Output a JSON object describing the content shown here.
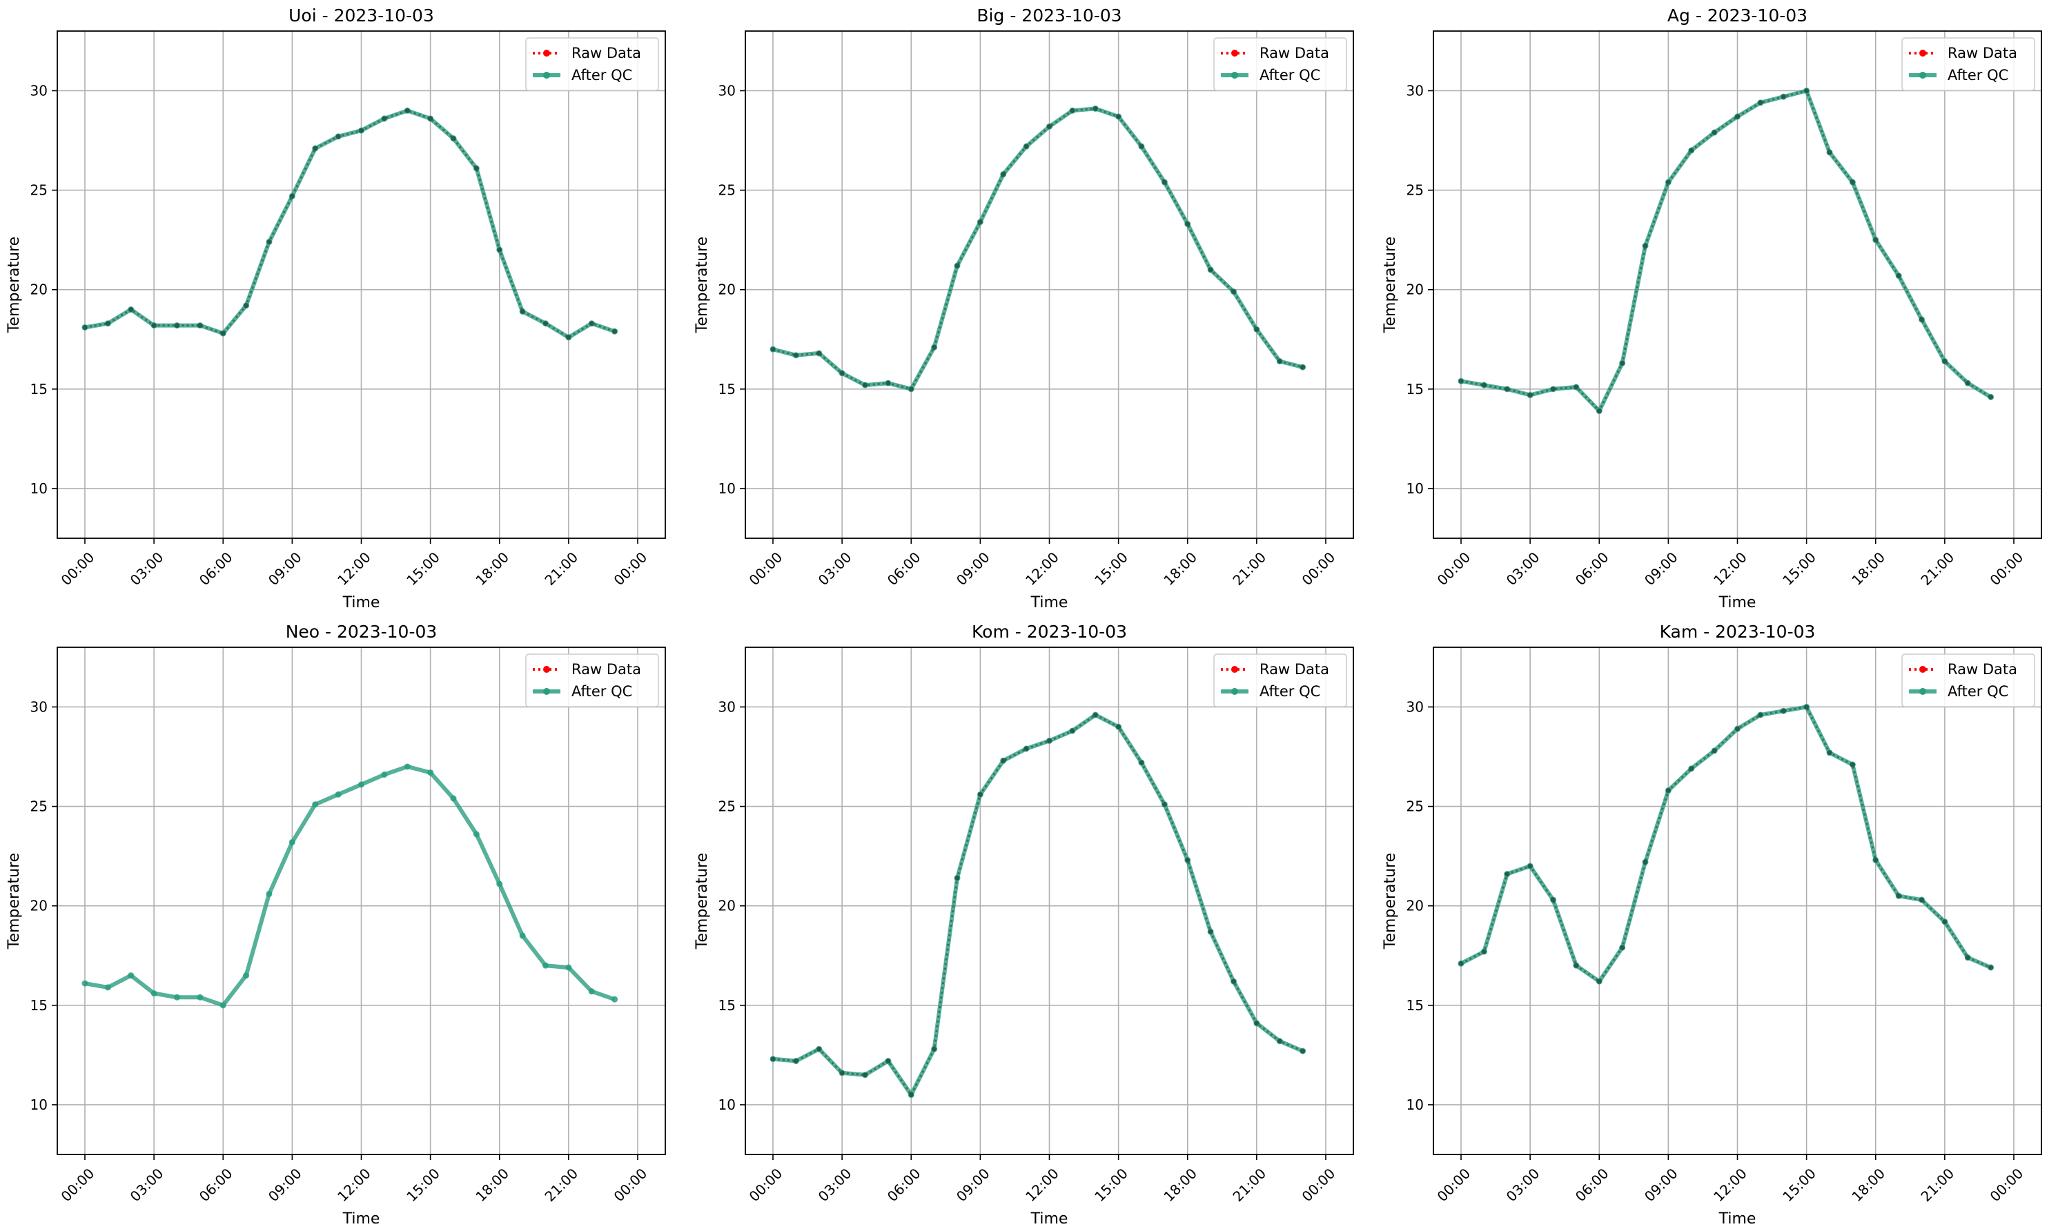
{
  "chart_data": [
    {
      "type": "line",
      "title": "Uoi - 2023-10-03",
      "xlabel": "Time",
      "ylabel": "Temperature",
      "x": [
        "00:00",
        "01:00",
        "02:00",
        "03:00",
        "04:00",
        "05:00",
        "06:00",
        "07:00",
        "08:00",
        "09:00",
        "10:00",
        "11:00",
        "12:00",
        "13:00",
        "14:00",
        "15:00",
        "16:00",
        "17:00",
        "18:00",
        "19:00",
        "20:00",
        "21:00",
        "22:00",
        "23:00"
      ],
      "xticks": [
        "00:00",
        "03:00",
        "06:00",
        "09:00",
        "12:00",
        "15:00",
        "18:00",
        "21:00",
        "00:00"
      ],
      "yticks": [
        10,
        15,
        20,
        25,
        30
      ],
      "ylim": [
        7.5,
        33
      ],
      "grid": true,
      "legend_position": "upper right",
      "series": [
        {
          "name": "Raw Data",
          "color": "#ff0000",
          "style": "dotted",
          "values": [
            18.1,
            18.3,
            19.0,
            18.2,
            18.2,
            18.2,
            17.8,
            19.2,
            22.4,
            24.7,
            27.1,
            27.7,
            28.0,
            28.6,
            29.0,
            28.6,
            27.6,
            26.1,
            22.0,
            18.9,
            18.3,
            17.6,
            18.3,
            17.9
          ]
        },
        {
          "name": "After QC",
          "color": "#2a9d80",
          "style": "solid",
          "values": [
            18.1,
            18.3,
            19.0,
            18.2,
            18.2,
            18.2,
            17.8,
            19.2,
            22.4,
            24.7,
            27.1,
            27.7,
            28.0,
            28.6,
            29.0,
            28.6,
            27.6,
            26.1,
            22.0,
            18.9,
            18.3,
            17.6,
            18.3,
            17.9
          ]
        }
      ]
    },
    {
      "type": "line",
      "title": "Big - 2023-10-03",
      "xlabel": "Time",
      "ylabel": "Temperature",
      "x": [
        "00:00",
        "01:00",
        "02:00",
        "03:00",
        "04:00",
        "05:00",
        "06:00",
        "07:00",
        "08:00",
        "09:00",
        "10:00",
        "11:00",
        "12:00",
        "13:00",
        "14:00",
        "15:00",
        "16:00",
        "17:00",
        "18:00",
        "19:00",
        "20:00",
        "21:00",
        "22:00",
        "23:00"
      ],
      "xticks": [
        "00:00",
        "03:00",
        "06:00",
        "09:00",
        "12:00",
        "15:00",
        "18:00",
        "21:00",
        "00:00"
      ],
      "yticks": [
        10,
        15,
        20,
        25,
        30
      ],
      "ylim": [
        7.5,
        33
      ],
      "grid": true,
      "legend_position": "upper right",
      "series": [
        {
          "name": "Raw Data",
          "color": "#ff0000",
          "style": "dotted",
          "values": [
            17.0,
            16.7,
            16.8,
            15.8,
            15.2,
            15.3,
            15.0,
            17.1,
            21.2,
            23.4,
            25.8,
            27.2,
            28.2,
            29.0,
            29.1,
            28.7,
            27.2,
            25.4,
            23.3,
            21.0,
            19.9,
            18.0,
            16.4,
            16.1
          ]
        },
        {
          "name": "After QC",
          "color": "#2a9d80",
          "style": "solid",
          "values": [
            17.0,
            16.7,
            16.8,
            15.8,
            15.2,
            15.3,
            15.0,
            17.1,
            21.2,
            23.4,
            25.8,
            27.2,
            28.2,
            29.0,
            29.1,
            28.7,
            27.2,
            25.4,
            23.3,
            21.0,
            19.9,
            18.0,
            16.4,
            16.1
          ]
        }
      ]
    },
    {
      "type": "line",
      "title": "Ag - 2023-10-03",
      "xlabel": "Time",
      "ylabel": "Temperature",
      "x": [
        "00:00",
        "01:00",
        "02:00",
        "03:00",
        "04:00",
        "05:00",
        "06:00",
        "07:00",
        "08:00",
        "09:00",
        "10:00",
        "11:00",
        "12:00",
        "13:00",
        "14:00",
        "15:00",
        "16:00",
        "17:00",
        "18:00",
        "19:00",
        "20:00",
        "21:00",
        "22:00",
        "23:00"
      ],
      "xticks": [
        "00:00",
        "03:00",
        "06:00",
        "09:00",
        "12:00",
        "15:00",
        "18:00",
        "21:00",
        "00:00"
      ],
      "yticks": [
        10,
        15,
        20,
        25,
        30
      ],
      "ylim": [
        7.5,
        33
      ],
      "grid": true,
      "legend_position": "upper right",
      "series": [
        {
          "name": "Raw Data",
          "color": "#ff0000",
          "style": "dotted",
          "values": [
            15.4,
            15.2,
            15.0,
            14.7,
            15.0,
            15.1,
            13.9,
            16.3,
            22.2,
            25.4,
            27.0,
            27.9,
            28.7,
            29.4,
            29.7,
            30.0,
            26.9,
            25.4,
            22.5,
            20.7,
            18.5,
            16.4,
            15.3,
            14.6
          ]
        },
        {
          "name": "After QC",
          "color": "#2a9d80",
          "style": "solid",
          "values": [
            15.4,
            15.2,
            15.0,
            14.7,
            15.0,
            15.1,
            13.9,
            16.3,
            22.2,
            25.4,
            27.0,
            27.9,
            28.7,
            29.4,
            29.7,
            30.0,
            26.9,
            25.4,
            22.5,
            20.7,
            18.5,
            16.4,
            15.3,
            14.6
          ]
        }
      ]
    },
    {
      "type": "line",
      "title": "Neo - 2023-10-03",
      "xlabel": "Time",
      "ylabel": "Temperature",
      "x": [
        "00:00",
        "01:00",
        "02:00",
        "03:00",
        "04:00",
        "05:00",
        "06:00",
        "07:00",
        "08:00",
        "09:00",
        "10:00",
        "11:00",
        "12:00",
        "13:00",
        "14:00",
        "15:00",
        "16:00",
        "17:00",
        "18:00",
        "19:00",
        "20:00",
        "21:00",
        "22:00",
        "23:00"
      ],
      "xticks": [
        "00:00",
        "03:00",
        "06:00",
        "09:00",
        "12:00",
        "15:00",
        "18:00",
        "21:00",
        "00:00"
      ],
      "yticks": [
        10,
        15,
        20,
        25,
        30
      ],
      "ylim": [
        7.5,
        33
      ],
      "grid": true,
      "legend_position": "upper right",
      "series": [
        {
          "name": "Raw Data",
          "color": "#ff0000",
          "style": "dotted",
          "values": [
            16.1,
            15.9,
            16.5,
            15.6,
            15.4,
            15.4,
            15.0,
            16.5,
            20.6,
            23.2,
            25.1,
            25.6,
            26.1,
            26.6,
            27.0,
            26.7,
            25.4,
            23.6,
            21.1,
            18.5,
            17.0,
            16.9,
            15.7,
            15.3
          ]
        },
        {
          "name": "After QC",
          "color": "#2a9d80",
          "style": "solid",
          "values": [
            16.1,
            15.9,
            16.5,
            15.6,
            15.4,
            15.4,
            15.0,
            16.5,
            20.6,
            23.2,
            25.1,
            25.6,
            26.1,
            26.6,
            27.0,
            26.7,
            25.4,
            23.6,
            21.1,
            18.5,
            17.0,
            16.9,
            15.7,
            15.3
          ]
        }
      ]
    },
    {
      "type": "line",
      "title": "Kom - 2023-10-03",
      "xlabel": "Time",
      "ylabel": "Temperature",
      "x": [
        "00:00",
        "01:00",
        "02:00",
        "03:00",
        "04:00",
        "05:00",
        "06:00",
        "07:00",
        "08:00",
        "09:00",
        "10:00",
        "11:00",
        "12:00",
        "13:00",
        "14:00",
        "15:00",
        "16:00",
        "17:00",
        "18:00",
        "19:00",
        "20:00",
        "21:00",
        "22:00",
        "23:00"
      ],
      "xticks": [
        "00:00",
        "03:00",
        "06:00",
        "09:00",
        "12:00",
        "15:00",
        "18:00",
        "21:00",
        "00:00"
      ],
      "yticks": [
        10,
        15,
        20,
        25,
        30
      ],
      "ylim": [
        7.5,
        33
      ],
      "grid": true,
      "legend_position": "upper right",
      "series": [
        {
          "name": "Raw Data",
          "color": "#ff0000",
          "style": "dotted",
          "values": [
            12.3,
            12.2,
            12.8,
            11.6,
            11.5,
            12.2,
            10.5,
            12.8,
            21.4,
            25.6,
            27.3,
            27.9,
            28.3,
            28.8,
            29.6,
            29.0,
            27.2,
            25.1,
            22.3,
            18.7,
            16.2,
            14.1,
            13.2,
            12.7
          ]
        },
        {
          "name": "After QC",
          "color": "#2a9d80",
          "style": "solid",
          "values": [
            12.3,
            12.2,
            12.8,
            11.6,
            11.5,
            12.2,
            10.5,
            12.8,
            21.4,
            25.6,
            27.3,
            27.9,
            28.3,
            28.8,
            29.6,
            29.0,
            27.2,
            25.1,
            22.3,
            18.7,
            16.2,
            14.1,
            13.2,
            12.7
          ]
        }
      ]
    },
    {
      "type": "line",
      "title": "Kam - 2023-10-03",
      "xlabel": "Time",
      "ylabel": "Temperature",
      "x": [
        "00:00",
        "01:00",
        "02:00",
        "03:00",
        "04:00",
        "05:00",
        "06:00",
        "07:00",
        "08:00",
        "09:00",
        "10:00",
        "11:00",
        "12:00",
        "13:00",
        "14:00",
        "15:00",
        "16:00",
        "17:00",
        "18:00",
        "19:00",
        "20:00",
        "21:00",
        "22:00",
        "23:00"
      ],
      "xticks": [
        "00:00",
        "03:00",
        "06:00",
        "09:00",
        "12:00",
        "15:00",
        "18:00",
        "21:00",
        "00:00"
      ],
      "yticks": [
        10,
        15,
        20,
        25,
        30
      ],
      "ylim": [
        7.5,
        33
      ],
      "grid": true,
      "legend_position": "upper right",
      "series": [
        {
          "name": "Raw Data",
          "color": "#ff0000",
          "style": "dotted",
          "values": [
            17.1,
            17.7,
            21.6,
            22.0,
            20.3,
            17.0,
            16.2,
            17.9,
            22.2,
            25.8,
            26.9,
            27.8,
            28.9,
            29.6,
            29.8,
            30.0,
            27.7,
            27.1,
            22.3,
            20.5,
            20.3,
            19.2,
            17.4,
            16.9
          ]
        },
        {
          "name": "After QC",
          "color": "#2a9d80",
          "style": "solid",
          "values": [
            17.1,
            17.7,
            21.6,
            22.0,
            20.3,
            17.0,
            16.2,
            17.9,
            22.2,
            25.8,
            26.9,
            27.8,
            28.9,
            29.6,
            29.8,
            30.0,
            27.7,
            27.1,
            22.3,
            20.5,
            20.3,
            19.2,
            17.4,
            16.9
          ]
        }
      ]
    }
  ]
}
